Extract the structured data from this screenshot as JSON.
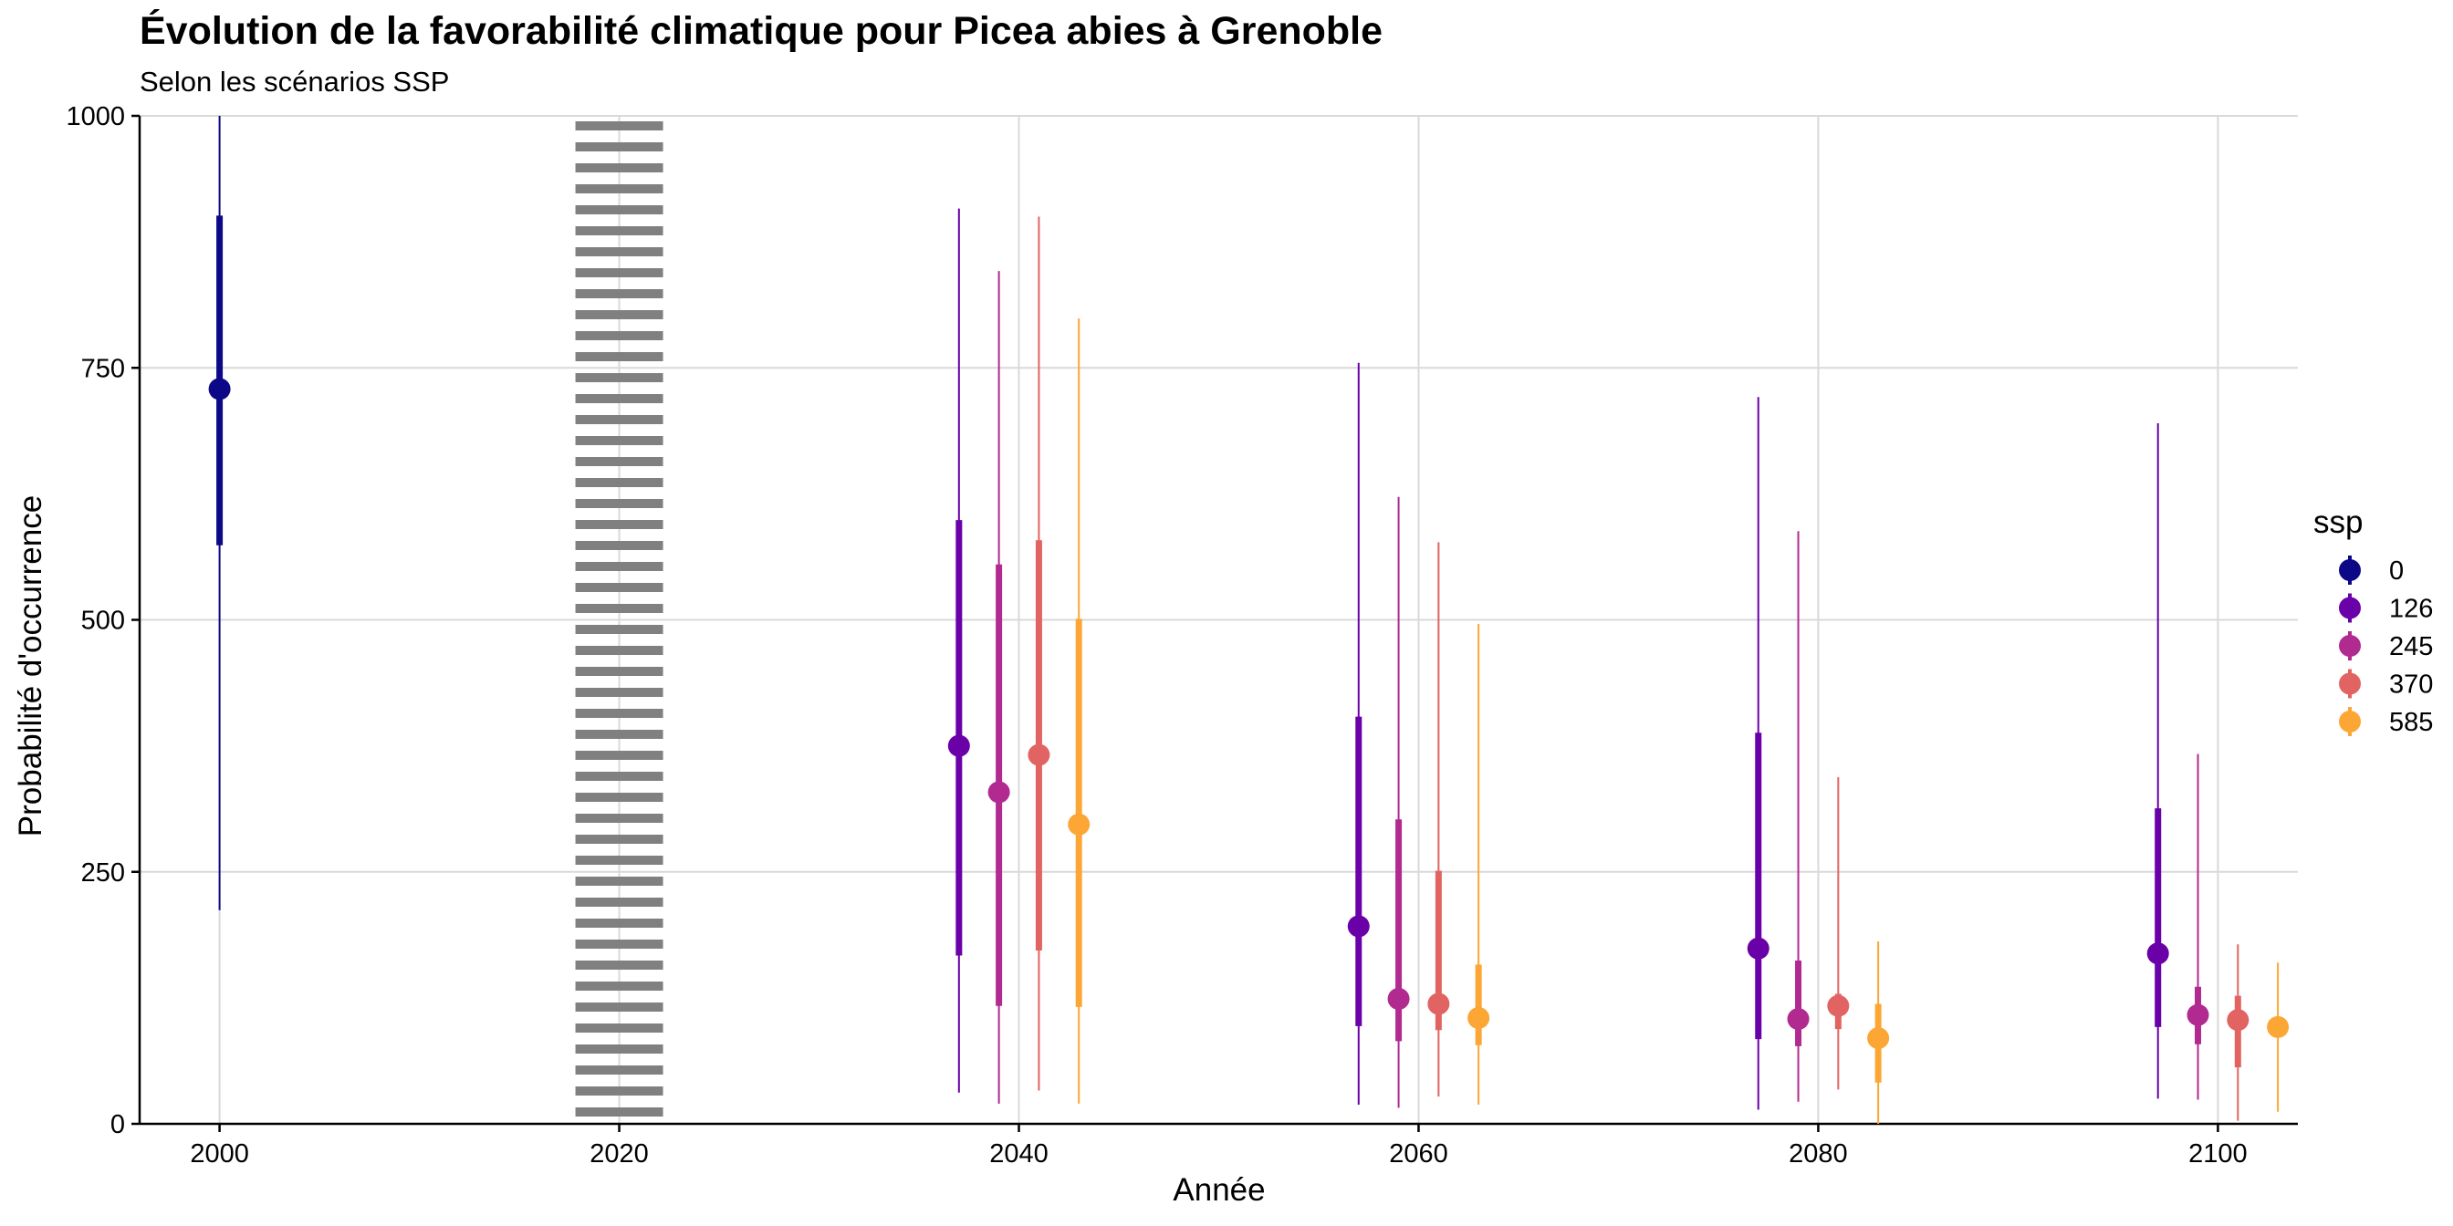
{
  "chart_data": {
    "type": "pointrange",
    "title": "Évolution de la favorabilité climatique pour Picea abies à Grenoble",
    "subtitle": "Selon les scénarios SSP",
    "xlabel": "Année",
    "ylabel": "Probabilité d'occurrence",
    "xlim": [
      1996,
      2104
    ],
    "ylim": [
      0,
      1000
    ],
    "x_ticks": [
      2000,
      2020,
      2040,
      2060,
      2080,
      2100
    ],
    "x_tick_labels": [
      "2000",
      "2020",
      "2040",
      "2060",
      "2080",
      "2100"
    ],
    "y_ticks": [
      0,
      250,
      500,
      750,
      1000
    ],
    "y_tick_labels": [
      "0",
      "250",
      "500",
      "750",
      "1000"
    ],
    "grid": true,
    "reference_line": {
      "x": 2020,
      "style": "dotted"
    },
    "legend": {
      "title": "ssp",
      "position": "right"
    },
    "series": [
      {
        "name": "0",
        "color": "#0d0887",
        "points": [
          {
            "x": 2000,
            "value": 729,
            "q_inner": [
              574,
              901
            ],
            "q_outer": [
              212,
              1000
            ]
          }
        ]
      },
      {
        "name": "126",
        "color": "#6a00a8",
        "points": [
          {
            "x": 2037,
            "value": 375,
            "q_inner": [
              167,
              599
            ],
            "q_outer": [
              31,
              908
            ]
          },
          {
            "x": 2057,
            "value": 196,
            "q_inner": [
              97,
              404
            ],
            "q_outer": [
              19,
              755
            ]
          },
          {
            "x": 2077,
            "value": 174,
            "q_inner": [
              84,
              388
            ],
            "q_outer": [
              14,
              721
            ]
          },
          {
            "x": 2097,
            "value": 169,
            "q_inner": [
              96,
              313
            ],
            "q_outer": [
              25,
              695
            ]
          }
        ]
      },
      {
        "name": "245",
        "color": "#b12a90",
        "points": [
          {
            "x": 2039,
            "value": 329,
            "q_inner": [
              117,
              555
            ],
            "q_outer": [
              20,
              846
            ]
          },
          {
            "x": 2059,
            "value": 124,
            "q_inner": [
              82,
              302
            ],
            "q_outer": [
              16,
              622
            ]
          },
          {
            "x": 2079,
            "value": 104,
            "q_inner": [
              77,
              162
            ],
            "q_outer": [
              22,
              588
            ]
          },
          {
            "x": 2099,
            "value": 108,
            "q_inner": [
              79,
              136
            ],
            "q_outer": [
              24,
              367
            ]
          }
        ]
      },
      {
        "name": "370",
        "color": "#e16462",
        "points": [
          {
            "x": 2041,
            "value": 366,
            "q_inner": [
              172,
              579
            ],
            "q_outer": [
              33,
              900
            ]
          },
          {
            "x": 2061,
            "value": 119,
            "q_inner": [
              93,
              251
            ],
            "q_outer": [
              27,
              577
            ]
          },
          {
            "x": 2081,
            "value": 117,
            "q_inner": [
              94,
              129
            ],
            "q_outer": [
              34,
              344
            ]
          },
          {
            "x": 2101,
            "value": 103,
            "q_inner": [
              56,
              127
            ],
            "q_outer": [
              3,
              178
            ]
          }
        ]
      },
      {
        "name": "585",
        "color": "#fca636",
        "points": [
          {
            "x": 2043,
            "value": 297,
            "q_inner": [
              116,
              501
            ],
            "q_outer": [
              20,
              799
            ]
          },
          {
            "x": 2063,
            "value": 105,
            "q_inner": [
              78,
              158
            ],
            "q_outer": [
              19,
              496
            ]
          },
          {
            "x": 2083,
            "value": 85,
            "q_inner": [
              41,
              119
            ],
            "q_outer": [
              0,
              181
            ]
          },
          {
            "x": 2103,
            "value": 96,
            "q_inner": [
              88,
              104
            ],
            "q_outer": [
              12,
              160
            ]
          }
        ]
      }
    ]
  }
}
